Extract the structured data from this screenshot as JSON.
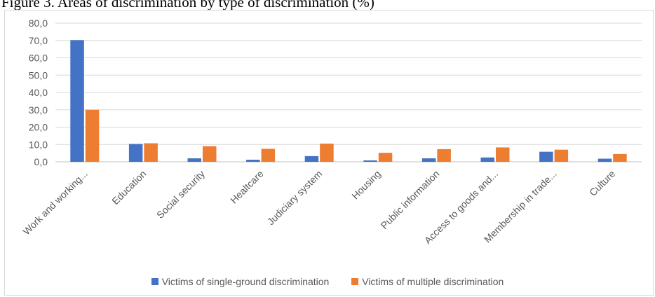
{
  "caption": "Figure 3. Areas of discrimination by type of discrimination (%)",
  "chart_data": {
    "type": "bar",
    "title": "",
    "xlabel": "",
    "ylabel": "",
    "ylim": [
      0,
      80
    ],
    "yticks": [
      "0,0",
      "10,0",
      "20,0",
      "30,0",
      "40,0",
      "50,0",
      "60,0",
      "70,0",
      "80,0"
    ],
    "categories": [
      "Work and working...",
      "Education",
      "Social security",
      "Healtcare",
      "Judiciary system",
      "Housing",
      "Public information",
      "Access to goods and...",
      "Membership in trade...",
      "Culture"
    ],
    "series": [
      {
        "name": "Victims of single-ground discrimination",
        "color": "#4472c4",
        "values": [
          70.2,
          10.3,
          2.0,
          1.2,
          3.3,
          0.8,
          2.0,
          2.5,
          5.8,
          1.8
        ]
      },
      {
        "name": "Victims of multiple discrimination",
        "color": "#ed7d31",
        "values": [
          30.0,
          10.7,
          9.0,
          7.5,
          10.5,
          5.2,
          7.3,
          8.3,
          7.0,
          4.5
        ]
      }
    ],
    "grid": true,
    "legend_position": "bottom"
  }
}
